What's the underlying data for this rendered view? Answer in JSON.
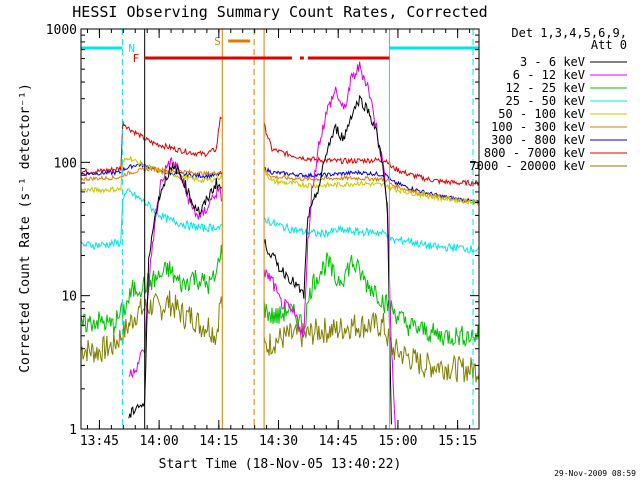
{
  "chart_data": {
    "type": "line",
    "title": "HESSI Observing Summary Count Rates, Corrected",
    "xlabel": "Start Time (18-Nov-05 13:40:22)",
    "ylabel": "Corrected Count Rate (s⁻¹ detector⁻¹)",
    "x_unit": "minutes after 13:40:22",
    "xlim": [
      0,
      100
    ],
    "ylim": [
      1,
      1000
    ],
    "yscale": "log",
    "xtick_labels": [
      "13:45",
      "14:00",
      "14:15",
      "14:30",
      "14:45",
      "15:00",
      "15:15"
    ],
    "xtick_values": [
      4.63,
      19.63,
      34.63,
      49.63,
      64.63,
      79.63,
      94.63
    ],
    "ytick_labels": [
      "1",
      "10",
      "100",
      "1000"
    ],
    "ytick_values": [
      1,
      10,
      100,
      1000
    ],
    "legend": {
      "title_lines": [
        "Det 1,3,4,5,6,9,",
        "Att 0"
      ],
      "position": "right"
    },
    "timestamp": "29-Nov-2009 08:59",
    "flag_labels": {
      "night": "N",
      "saa": "S",
      "flare": "F"
    },
    "flag_colors": {
      "night": "#00e5e5",
      "saa": "#e07b00",
      "flare": "#e00000"
    },
    "flags": {
      "night": [
        [
          0,
          10.4
        ],
        [
          77.5,
          100
        ]
      ],
      "saa": [
        [
          37.0,
          42.5
        ]
      ],
      "flare": [
        [
          16.0,
          53.0
        ],
        [
          55.0,
          56.0
        ],
        [
          57.0,
          77.5
        ]
      ]
    },
    "vlines": [
      {
        "x": 10.4,
        "color": "#00e5e5",
        "style": "dashed"
      },
      {
        "x": 16.0,
        "color": "#000000",
        "style": "solid"
      },
      {
        "x": 35.5,
        "color": "#e07b00",
        "style": "solid"
      },
      {
        "x": 43.5,
        "color": "#e07b00",
        "style": "dashed"
      },
      {
        "x": 46.0,
        "color": "#e07b00",
        "style": "solid"
      },
      {
        "x": 77.5,
        "color": "#00e5e5",
        "style": "solid"
      },
      {
        "x": 98.5,
        "color": "#00e5e5",
        "style": "dashed"
      }
    ],
    "gaps": [
      [
        35.6,
        45.9
      ]
    ],
    "series": [
      {
        "name": "3 - 6 keV",
        "color": "#000000",
        "x": [
          12,
          14,
          16,
          17,
          18,
          19,
          20,
          22,
          24,
          26,
          28,
          30,
          32,
          34,
          35,
          46,
          48,
          50,
          52,
          54,
          56,
          57,
          58,
          60,
          62,
          64,
          66,
          68,
          70,
          72,
          74,
          76,
          77,
          78
        ],
        "y": [
          1.2,
          1.5,
          1.5,
          20,
          30,
          45,
          60,
          85,
          90,
          70,
          50,
          42,
          55,
          70,
          65,
          25,
          20,
          16,
          14,
          12,
          10,
          40,
          45,
          70,
          130,
          180,
          150,
          230,
          300,
          250,
          180,
          90,
          40,
          1
        ]
      },
      {
        "name": "6 - 12 keV",
        "color": "#e000e0",
        "x": [
          12,
          14,
          16,
          17,
          18,
          20,
          22,
          24,
          26,
          28,
          30,
          32,
          34,
          35,
          46,
          48,
          50,
          52,
          54,
          56,
          57,
          58,
          60,
          62,
          64,
          66,
          68,
          70,
          72,
          74,
          76,
          77,
          78,
          79
        ],
        "y": [
          2.5,
          3,
          4,
          12,
          25,
          70,
          100,
          95,
          65,
          45,
          38,
          48,
          60,
          58,
          15,
          13,
          9,
          8,
          7,
          5,
          25,
          60,
          150,
          250,
          350,
          240,
          420,
          520,
          380,
          200,
          90,
          50,
          4,
          1
        ]
      },
      {
        "name": "12 - 25 keV",
        "color": "#00c000",
        "x": [
          0,
          4,
          8,
          11,
          13,
          16,
          18,
          20,
          22,
          24,
          26,
          28,
          30,
          32,
          34,
          35,
          46,
          48,
          50,
          52,
          54,
          56,
          58,
          60,
          62,
          64,
          66,
          68,
          70,
          72,
          74,
          76,
          78,
          82,
          86,
          90,
          96,
          100
        ],
        "y": [
          6,
          6.5,
          6,
          8,
          11,
          12,
          13,
          14,
          16,
          13,
          12,
          14,
          13,
          12,
          14,
          22,
          8,
          7,
          7,
          8,
          7,
          6,
          12,
          15,
          18,
          13,
          14,
          18,
          15,
          12,
          11,
          9,
          8,
          6,
          5.5,
          5,
          5,
          5
        ]
      },
      {
        "name": "25 - 50 keV",
        "color": "#00e5e5",
        "x": [
          0,
          5,
          10,
          10.5,
          12,
          14,
          16,
          18,
          20,
          22,
          25,
          28,
          31,
          34,
          35,
          46,
          48,
          52,
          56,
          60,
          65,
          70,
          74,
          77,
          78,
          82,
          86,
          90,
          95,
          100
        ],
        "y": [
          24,
          24,
          25,
          55,
          60,
          55,
          50,
          45,
          40,
          37,
          35,
          33,
          32,
          33,
          32,
          38,
          35,
          32,
          30,
          29,
          31,
          30,
          30,
          29,
          26,
          26,
          24,
          23,
          23,
          22
        ]
      },
      {
        "name": "50 - 100 keV",
        "color": "#c8c800",
        "x": [
          0,
          5,
          10,
          10.5,
          12,
          14,
          16,
          18,
          20,
          24,
          28,
          31,
          34,
          35,
          46,
          48,
          52,
          56,
          60,
          65,
          70,
          74,
          77,
          78,
          82,
          86,
          90,
          95,
          100
        ],
        "y": [
          62,
          62,
          63,
          100,
          110,
          100,
          95,
          90,
          85,
          80,
          75,
          73,
          75,
          78,
          88,
          72,
          70,
          68,
          67,
          68,
          70,
          68,
          67,
          64,
          60,
          57,
          54,
          52,
          50
        ]
      },
      {
        "name": "100 - 300 keV",
        "color": "#e07b00",
        "x": [
          0,
          5,
          10,
          10.5,
          12,
          14,
          16,
          18,
          20,
          24,
          28,
          31,
          34,
          35,
          46,
          48,
          52,
          56,
          60,
          65,
          70,
          74,
          77,
          78,
          82,
          86,
          90,
          95,
          100
        ],
        "y": [
          75,
          76,
          77,
          80,
          83,
          86,
          88,
          90,
          88,
          86,
          84,
          82,
          83,
          85,
          88,
          78,
          76,
          75,
          75,
          76,
          76,
          75,
          74,
          68,
          62,
          58,
          55,
          52,
          50
        ]
      },
      {
        "name": "300 - 800 keV",
        "color": "#0000e0",
        "x": [
          0,
          5,
          10,
          10.5,
          12,
          14,
          16,
          18,
          20,
          24,
          28,
          31,
          34,
          35,
          46,
          48,
          52,
          56,
          60,
          65,
          70,
          74,
          77,
          78,
          82,
          86,
          90,
          95,
          100
        ],
        "y": [
          82,
          83,
          84,
          88,
          92,
          96,
          95,
          90,
          85,
          82,
          80,
          79,
          80,
          82,
          90,
          84,
          82,
          80,
          80,
          82,
          84,
          82,
          80,
          72,
          65,
          60,
          56,
          53,
          50
        ]
      },
      {
        "name": "800 - 7000 keV",
        "color": "#e00000",
        "x": [
          0,
          5,
          10,
          10.5,
          12,
          14,
          16,
          18,
          20,
          24,
          28,
          31,
          34,
          35,
          46,
          48,
          52,
          56,
          60,
          65,
          70,
          74,
          77,
          78,
          82,
          86,
          90,
          95,
          100
        ],
        "y": [
          85,
          86,
          90,
          200,
          180,
          165,
          150,
          140,
          135,
          125,
          118,
          115,
          125,
          220,
          190,
          125,
          115,
          108,
          104,
          102,
          103,
          104,
          103,
          92,
          82,
          76,
          72,
          70,
          70
        ]
      },
      {
        "name": "7000 - 20000 keV",
        "color": "#808000",
        "x": [
          0,
          4,
          8,
          10,
          12,
          14,
          16,
          18,
          20,
          22,
          24,
          26,
          28,
          30,
          32,
          34,
          35,
          46,
          48,
          52,
          56,
          60,
          64,
          68,
          72,
          76,
          78,
          82,
          86,
          90,
          95,
          100
        ],
        "y": [
          4,
          3.8,
          4.2,
          5,
          6,
          7.5,
          8,
          8.5,
          8,
          9,
          8,
          7,
          7,
          6,
          6,
          5,
          9,
          4,
          4.5,
          5,
          5,
          5.5,
          5.5,
          6,
          6,
          6,
          4,
          3.5,
          3,
          3,
          2.8,
          2.8
        ]
      }
    ]
  }
}
